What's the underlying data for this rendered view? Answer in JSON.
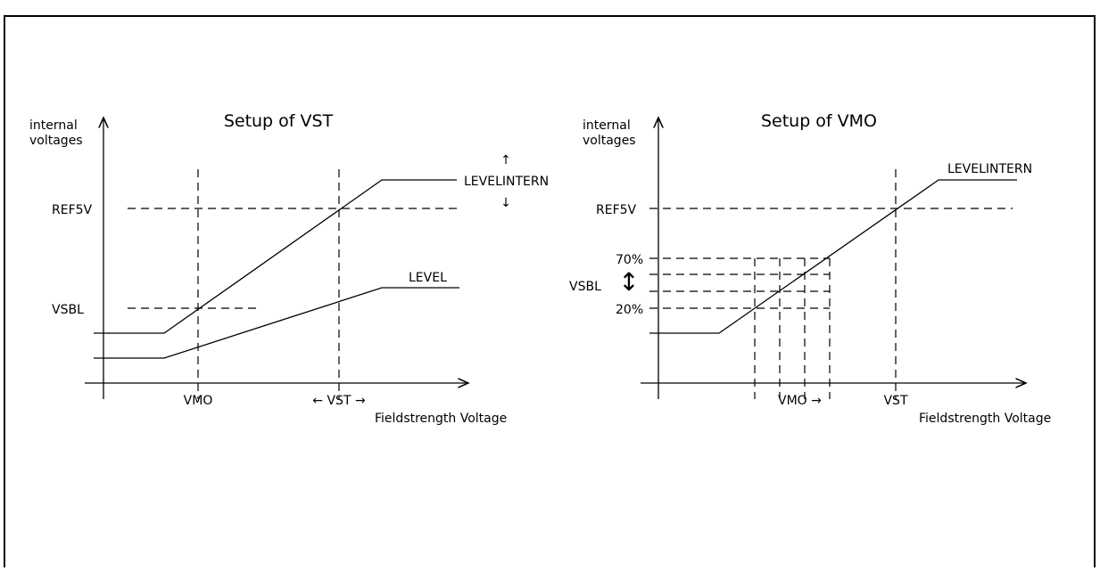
{
  "left": {
    "title": "Setup of VST",
    "y_label": [
      "internal",
      "voltages"
    ],
    "levels": [
      "REF5V",
      "VSBL"
    ],
    "x_marks": [
      "VMO",
      "← VST →"
    ],
    "x_label": "Fieldstrength Voltage",
    "curves": [
      "LEVELINTERN",
      "LEVEL"
    ],
    "arrows": [
      "↑",
      "↓"
    ]
  },
  "right": {
    "title": "Setup of VMO",
    "y_label": [
      "internal",
      "voltages"
    ],
    "levels": [
      "REF5V",
      "70%",
      "VSBL",
      "20%"
    ],
    "x_marks": [
      "VMO →",
      "VST"
    ],
    "x_label": "Fieldstrength Voltage",
    "curves": [
      "LEVELINTERN"
    ],
    "arrows": [
      "↕"
    ]
  }
}
